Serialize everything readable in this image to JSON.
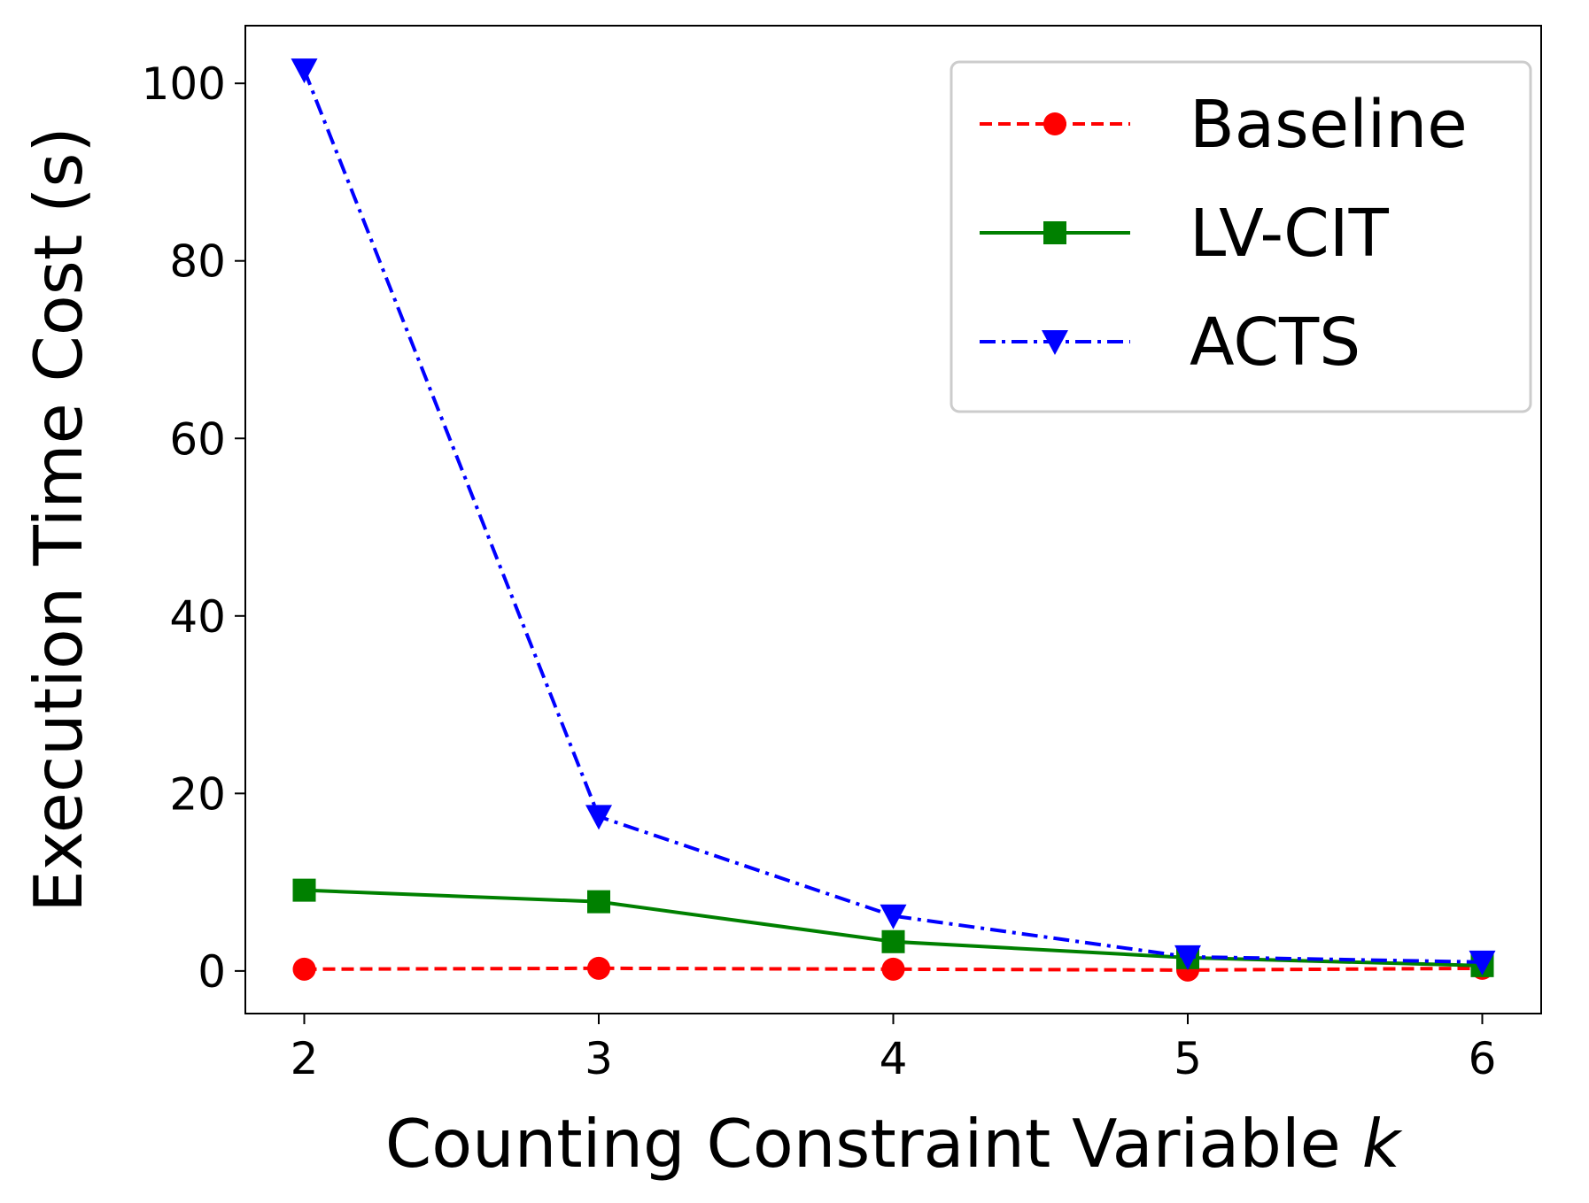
{
  "chart_data": {
    "type": "line",
    "title": "",
    "xlabel": "Counting Constraint Variable",
    "xlabel_var": "k",
    "ylabel": "Execution Time Cost (s)",
    "x": [
      2,
      3,
      4,
      5,
      6
    ],
    "x_ticks": [
      "2",
      "3",
      "4",
      "5",
      "6"
    ],
    "y_ticks": [
      "0",
      "20",
      "40",
      "60",
      "80",
      "100"
    ],
    "xlim": [
      1.8,
      6.2
    ],
    "ylim": [
      -4.8,
      106.5
    ],
    "grid": false,
    "legend_position": "top-right",
    "series": [
      {
        "name": "Baseline",
        "values": [
          0.2,
          0.3,
          0.2,
          0.1,
          0.3
        ],
        "color": "#ff0000",
        "linestyle": "dashed",
        "marker": "circle"
      },
      {
        "name": "LV-CIT",
        "values": [
          9.1,
          7.8,
          3.3,
          1.5,
          0.6
        ],
        "color": "#008000",
        "linestyle": "solid",
        "marker": "square"
      },
      {
        "name": "ACTS",
        "values": [
          101.5,
          17.4,
          6.2,
          1.6,
          1.0
        ],
        "color": "#0000ff",
        "linestyle": "dashdot",
        "marker": "triangle-down"
      }
    ]
  }
}
